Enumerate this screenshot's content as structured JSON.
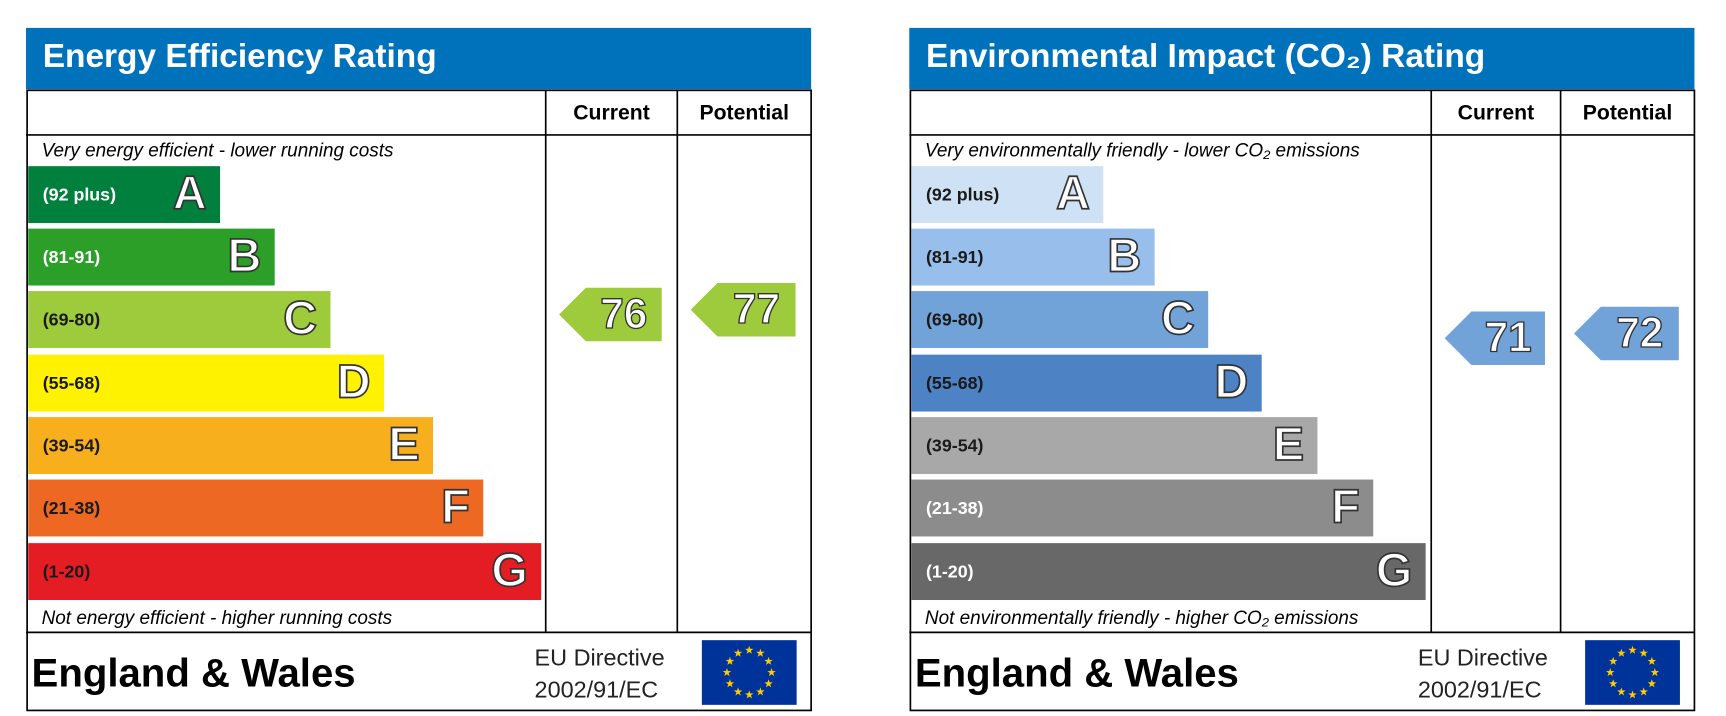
{
  "panels": [
    {
      "title": "Energy Efficiency Rating",
      "columns": [
        "Current",
        "Potential"
      ],
      "top_note": "Very energy efficient - lower running costs",
      "bottom_note": "Not energy efficient - higher running costs",
      "bands": [
        {
          "range": "(92 plus)",
          "letter": "A",
          "color": "#007f3d",
          "text_color": "#ffffff"
        },
        {
          "range": "(81-91)",
          "letter": "B",
          "color": "#2c9f29",
          "text_color": "#ffffff"
        },
        {
          "range": "(69-80)",
          "letter": "C",
          "color": "#9dcb3c",
          "text_color": "#1a1a1a"
        },
        {
          "range": "(55-68)",
          "letter": "D",
          "color": "#fff200",
          "text_color": "#1a1a1a"
        },
        {
          "range": "(39-54)",
          "letter": "E",
          "color": "#f7af1d",
          "text_color": "#1a1a1a"
        },
        {
          "range": "(21-38)",
          "letter": "F",
          "color": "#ed6823",
          "text_color": "#1a1a1a"
        },
        {
          "range": "(1-20)",
          "letter": "G",
          "color": "#e31d23",
          "text_color": "#1a1a1a"
        }
      ],
      "current": 76,
      "potential": 77,
      "region": "England & Wales",
      "directive": [
        "EU Directive",
        "2002/91/EC"
      ]
    },
    {
      "title": "Environmental Impact (CO₂) Rating",
      "columns": [
        "Current",
        "Potential"
      ],
      "top_note": "Very environmentally friendly - lower CO₂ emissions",
      "bottom_note": "Not environmentally friendly - higher CO₂ emissions",
      "bands": [
        {
          "range": "(92 plus)",
          "letter": "A",
          "color": "#cfe2f5",
          "text_color": "#1a1a1a"
        },
        {
          "range": "(81-91)",
          "letter": "B",
          "color": "#98bfec",
          "text_color": "#1a1a1a"
        },
        {
          "range": "(69-80)",
          "letter": "C",
          "color": "#72a3d8",
          "text_color": "#1a1a1a"
        },
        {
          "range": "(55-68)",
          "letter": "D",
          "color": "#4d82c4",
          "text_color": "#1a1a1a"
        },
        {
          "range": "(39-54)",
          "letter": "E",
          "color": "#a8a8a8",
          "text_color": "#1a1a1a"
        },
        {
          "range": "(21-38)",
          "letter": "F",
          "color": "#8c8c8c",
          "text_color": "#ffffff"
        },
        {
          "range": "(1-20)",
          "letter": "G",
          "color": "#686868",
          "text_color": "#ffffff"
        }
      ],
      "current": 71,
      "potential": 72,
      "region": "England & Wales",
      "directive": [
        "EU Directive",
        "2002/91/EC"
      ]
    }
  ]
}
